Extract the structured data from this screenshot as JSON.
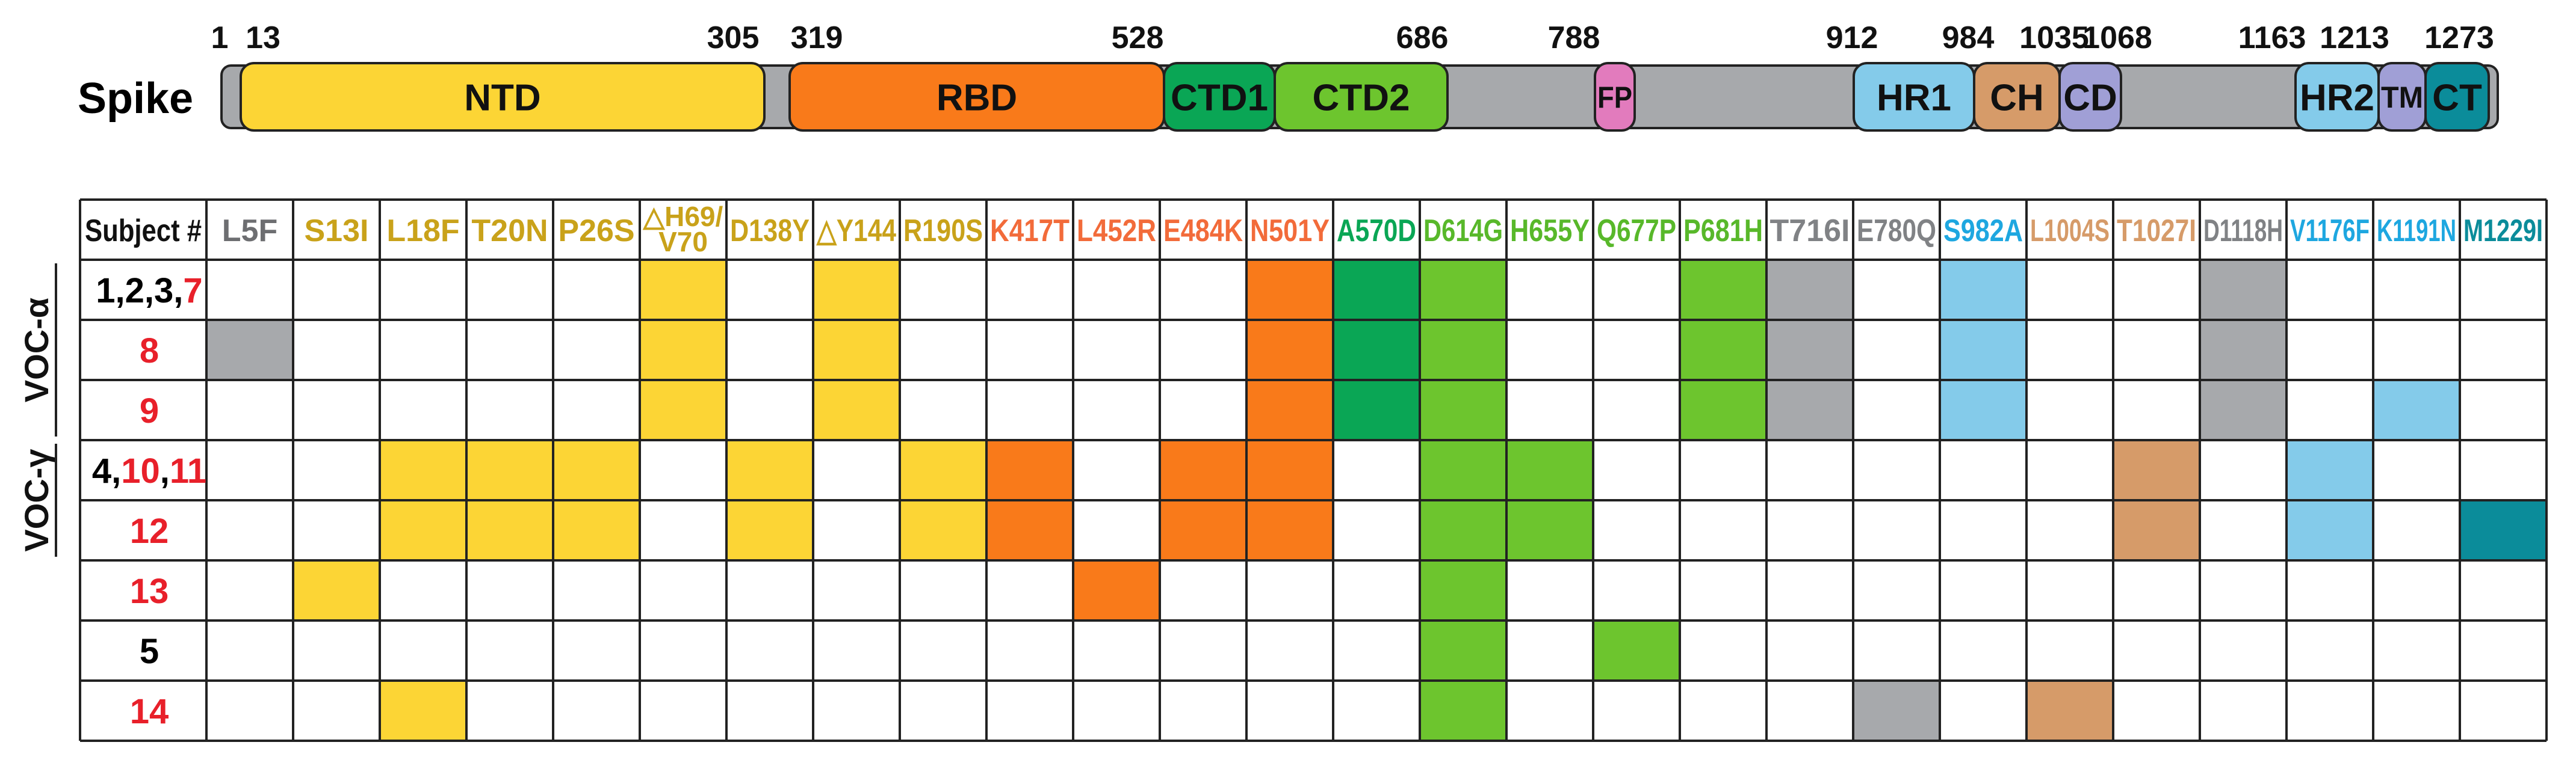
{
  "spike": {
    "label": "Spike",
    "backbone_color": "#a7a9ac",
    "positions": [
      "1",
      "13",
      "305",
      "319",
      "528",
      "686",
      "788",
      "912",
      "984",
      "1035",
      "1068",
      "1163",
      "1213",
      "1273"
    ],
    "domains": [
      {
        "name": "NTD",
        "label": "NTD",
        "start": 13,
        "end": 305,
        "color": "#fcd535"
      },
      {
        "name": "RBD",
        "label": "RBD",
        "start": 319,
        "end": 528,
        "color": "#f97a1a"
      },
      {
        "name": "CTD1",
        "label": "CTD1",
        "start": 528,
        "end": 591,
        "color": "#0aa655"
      },
      {
        "name": "CTD2",
        "label": "CTD2",
        "start": 591,
        "end": 686,
        "color": "#6dc52e"
      },
      {
        "name": "FP",
        "label": "FP",
        "start": 788,
        "end": 808,
        "color": "#e27bbd"
      },
      {
        "name": "HR1",
        "label": "HR1",
        "start": 912,
        "end": 984,
        "color": "#84cbea"
      },
      {
        "name": "CH",
        "label": "CH",
        "start": 984,
        "end": 1035,
        "color": "#d69b69"
      },
      {
        "name": "CD",
        "label": "CD",
        "start": 1035,
        "end": 1068,
        "color": "#a09fd6"
      },
      {
        "name": "HR2",
        "label": "HR2",
        "start": 1163,
        "end": 1213,
        "color": "#84cbea"
      },
      {
        "name": "TM",
        "label": "TM",
        "start": 1213,
        "end": 1237,
        "color": "#a09fd6"
      },
      {
        "name": "CT",
        "label": "CT",
        "start": 1237,
        "end": 1273,
        "color": "#0b8c9a"
      }
    ]
  },
  "table": {
    "corner_label": "Subject #",
    "columns": [
      {
        "label": "L5F",
        "color": "#6d6e71",
        "fill": "#a7a9ac"
      },
      {
        "label": "S13I",
        "color": "#c9a21a",
        "fill": "#fcd535"
      },
      {
        "label": "L18F",
        "color": "#c9a21a",
        "fill": "#fcd535"
      },
      {
        "label": "T20N",
        "color": "#c9a21a",
        "fill": "#fcd535"
      },
      {
        "label": "P26S",
        "color": "#c9a21a",
        "fill": "#fcd535"
      },
      {
        "label": "△H69/ V70",
        "color": "#c9a21a",
        "fill": "#fcd535"
      },
      {
        "label": "D138Y",
        "color": "#c9a21a",
        "fill": "#fcd535"
      },
      {
        "label": "△Y144",
        "color": "#c9a21a",
        "fill": "#fcd535"
      },
      {
        "label": "R190S",
        "color": "#c9a21a",
        "fill": "#fcd535"
      },
      {
        "label": "K417T",
        "color": "#f26b3a",
        "fill": "#f97a1a"
      },
      {
        "label": "L452R",
        "color": "#f26b3a",
        "fill": "#f97a1a"
      },
      {
        "label": "E484K",
        "color": "#f26b3a",
        "fill": "#f97a1a"
      },
      {
        "label": "N501Y",
        "color": "#f26b3a",
        "fill": "#f97a1a"
      },
      {
        "label": "A570D",
        "color": "#0aa655",
        "fill": "#0aa655"
      },
      {
        "label": "D614G",
        "color": "#58b82a",
        "fill": "#6dc52e"
      },
      {
        "label": "H655Y",
        "color": "#58b82a",
        "fill": "#6dc52e"
      },
      {
        "label": "Q677P",
        "color": "#58b82a",
        "fill": "#6dc52e"
      },
      {
        "label": "P681H",
        "color": "#58b82a",
        "fill": "#6dc52e"
      },
      {
        "label": "T716I",
        "color": "#808285",
        "fill": "#a7a9ac"
      },
      {
        "label": "E780Q",
        "color": "#808285",
        "fill": "#a7a9ac"
      },
      {
        "label": "S982A",
        "color": "#1ea7e0",
        "fill": "#84cbea"
      },
      {
        "label": "L1004S",
        "color": "#d69b69",
        "fill": "#d69b69"
      },
      {
        "label": "T1027I",
        "color": "#d69b69",
        "fill": "#d69b69"
      },
      {
        "label": "D1118H",
        "color": "#808285",
        "fill": "#a7a9ac"
      },
      {
        "label": "V1176F",
        "color": "#1ea7e0",
        "fill": "#84cbea"
      },
      {
        "label": "K1191N",
        "color": "#1ea7e0",
        "fill": "#84cbea"
      },
      {
        "label": "M1229I",
        "color": "#0b8c9a",
        "fill": "#0b8c9a"
      }
    ],
    "rows": [
      {
        "label_parts": [
          {
            "text": "1,2,3,",
            "color": "#000000"
          },
          {
            "text": "7",
            "color": "#e8202a"
          }
        ],
        "filled": [
          5,
          7,
          12,
          13,
          14,
          17,
          18,
          20,
          23
        ]
      },
      {
        "label_parts": [
          {
            "text": "8",
            "color": "#e8202a"
          }
        ],
        "filled": [
          0,
          5,
          7,
          12,
          13,
          14,
          17,
          18,
          20,
          23
        ]
      },
      {
        "label_parts": [
          {
            "text": "9",
            "color": "#e8202a"
          }
        ],
        "filled": [
          5,
          7,
          12,
          13,
          14,
          17,
          18,
          20,
          23,
          25
        ]
      },
      {
        "label_parts": [
          {
            "text": "4,",
            "color": "#000000"
          },
          {
            "text": "10",
            "color": "#e8202a"
          },
          {
            "text": ",",
            "color": "#000000"
          },
          {
            "text": "11",
            "color": "#e8202a"
          }
        ],
        "filled": [
          2,
          3,
          4,
          6,
          8,
          9,
          11,
          12,
          14,
          15,
          22,
          24
        ]
      },
      {
        "label_parts": [
          {
            "text": "12",
            "color": "#e8202a"
          }
        ],
        "filled": [
          2,
          3,
          4,
          6,
          8,
          9,
          11,
          12,
          14,
          15,
          22,
          24,
          26
        ]
      },
      {
        "label_parts": [
          {
            "text": "13",
            "color": "#e8202a"
          }
        ],
        "filled": [
          1,
          10,
          14
        ]
      },
      {
        "label_parts": [
          {
            "text": "5",
            "color": "#000000"
          }
        ],
        "filled": [
          14,
          16
        ]
      },
      {
        "label_parts": [
          {
            "text": "14",
            "color": "#e8202a"
          }
        ],
        "filled": [
          2,
          14,
          19,
          21
        ]
      }
    ],
    "groups": [
      {
        "label": "VOC-α",
        "first_row": 0,
        "last_row": 2
      },
      {
        "label": "VOC-γ",
        "first_row": 3,
        "last_row": 4
      }
    ]
  }
}
